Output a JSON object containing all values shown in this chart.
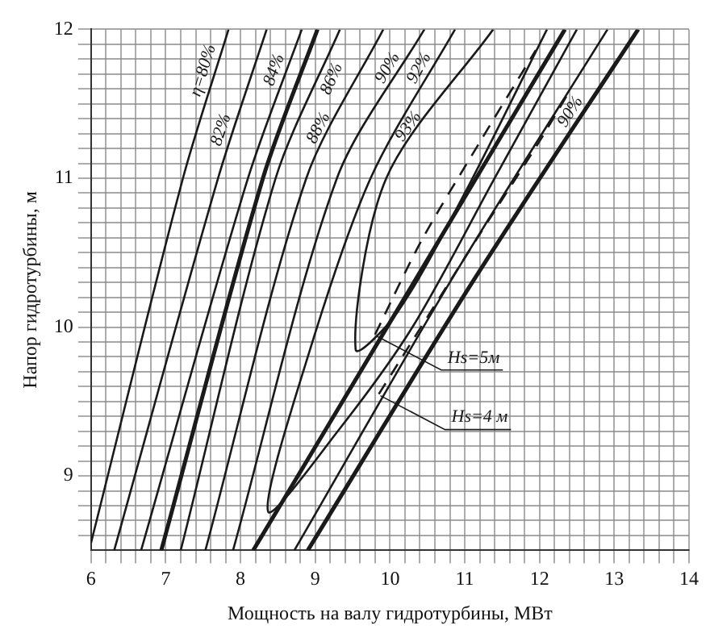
{
  "chart_data": {
    "type": "line",
    "xlabel": "Мощность на валу гидротурбины, МВт",
    "ylabel": "Напор гидротурбины, м",
    "xlim": [
      6,
      14
    ],
    "ylim": [
      8.5,
      12
    ],
    "xticks": [
      6,
      {
        "value": 6.2,
        "label": null
      },
      {
        "value": 6.4,
        "label": null
      },
      {
        "value": 6.6,
        "label": null
      },
      {
        "value": 6.8,
        "label": null
      },
      7,
      {
        "value": 7.2,
        "label": null
      },
      {
        "value": 7.4,
        "label": null
      },
      {
        "value": 7.6,
        "label": null
      },
      {
        "value": 7.8,
        "label": null
      },
      8,
      {
        "value": 8.2,
        "label": null
      },
      {
        "value": 8.4,
        "label": null
      },
      {
        "value": 8.6,
        "label": null
      },
      {
        "value": 8.8,
        "label": null
      },
      9,
      {
        "value": 9.2,
        "label": null
      },
      {
        "value": 9.4,
        "label": null
      },
      {
        "value": 9.6,
        "label": null
      },
      {
        "value": 9.8,
        "label": null
      },
      10,
      {
        "value": 10.2,
        "label": null
      },
      {
        "value": 10.4,
        "label": null
      },
      {
        "value": 10.6,
        "label": null
      },
      {
        "value": 10.8,
        "label": null
      },
      11,
      {
        "value": 11.2,
        "label": null
      },
      {
        "value": 11.4,
        "label": null
      },
      {
        "value": 11.6,
        "label": null
      },
      {
        "value": 11.8,
        "label": null
      },
      12,
      {
        "value": 12.2,
        "label": null
      },
      {
        "value": 12.4,
        "label": null
      },
      {
        "value": 12.6,
        "label": null
      },
      {
        "value": 12.8,
        "label": null
      },
      13,
      {
        "value": 13.2,
        "label": null
      },
      {
        "value": 13.4,
        "label": null
      },
      {
        "value": 13.6,
        "label": null
      },
      {
        "value": 13.8,
        "label": null
      },
      14
    ],
    "yticks": [
      {
        "value": 8.6,
        "label": null
      },
      {
        "value": 8.7,
        "label": null
      },
      {
        "value": 8.8,
        "label": null
      },
      {
        "value": 8.9,
        "label": null
      },
      9,
      {
        "value": 9.1,
        "label": null
      },
      {
        "value": 9.2,
        "label": null
      },
      {
        "value": 9.3,
        "label": null
      },
      {
        "value": 9.4,
        "label": null
      },
      {
        "value": 9.5,
        "label": null
      },
      {
        "value": 9.6,
        "label": null
      },
      {
        "value": 9.7,
        "label": null
      },
      {
        "value": 9.8,
        "label": null
      },
      {
        "value": 9.9,
        "label": null
      },
      10,
      {
        "value": 10.1,
        "label": null
      },
      {
        "value": 10.2,
        "label": null
      },
      {
        "value": 10.3,
        "label": null
      },
      {
        "value": 10.4,
        "label": null
      },
      {
        "value": 10.5,
        "label": null
      },
      {
        "value": 10.6,
        "label": null
      },
      {
        "value": 10.7,
        "label": null
      },
      {
        "value": 10.8,
        "label": null
      },
      {
        "value": 10.9,
        "label": null
      },
      11,
      {
        "value": 11.1,
        "label": null
      },
      {
        "value": 11.2,
        "label": null
      },
      {
        "value": 11.3,
        "label": null
      },
      {
        "value": 11.4,
        "label": null
      },
      {
        "value": 11.5,
        "label": null
      },
      {
        "value": 11.6,
        "label": null
      },
      {
        "value": 11.7,
        "label": null
      },
      {
        "value": 11.8,
        "label": null
      },
      {
        "value": 11.9,
        "label": null
      },
      12
    ],
    "grid": true,
    "legend": false,
    "marker": "none",
    "line_style": "solid",
    "series": [
      {
        "name": "η=80%",
        "color": "#1a1a1a",
        "x": [
          6,
          7.23,
          7.84
        ],
        "values": [
          8.55,
          11,
          12
        ]
      },
      {
        "name": "82%",
        "color": "#1a1a1a",
        "x": [
          6.31,
          7.7,
          8.35
        ],
        "values": [
          8.5,
          11,
          12
        ]
      },
      {
        "name": "84%",
        "color": "#1a1a1a",
        "x": [
          6.67,
          8.1,
          8.82
        ],
        "values": [
          8.5,
          11,
          12
        ]
      },
      {
        "color": "#1a1a1a",
        "x": [
          6.94,
          8.3,
          9.03
        ],
        "values": [
          8.5,
          11,
          12
        ]
      },
      {
        "name": "86%",
        "color": "#1a1a1a",
        "x": [
          7.2,
          8.47,
          9.33
        ],
        "values": [
          8.5,
          11,
          12
        ]
      },
      {
        "name": "88%",
        "color": "#1a1a1a",
        "x": [
          7.53,
          8.88,
          9.91
        ],
        "values": [
          8.5,
          11,
          12
        ]
      },
      {
        "name": "90%",
        "color": "#1a1a1a",
        "x": [
          7.9,
          9.29,
          10.46
        ],
        "values": [
          8.5,
          11,
          12
        ]
      },
      {
        "name": "92%",
        "color": "#1a1a1a",
        "x": [
          10.87,
          9.74,
          8.9,
          8.37,
          9.3,
          10.3,
          11.4,
          12.5
        ],
        "values": [
          12,
          11,
          9.8,
          8.76,
          9.3,
          10,
          11,
          12
        ]
      },
      {
        "name": "93%",
        "color": "#1a1a1a",
        "x": [
          11.38,
          9.95,
          9.54,
          10.1,
          11.0,
          12.1
        ],
        "values": [
          12,
          11,
          9.85,
          10.1,
          10.9,
          12
        ]
      },
      {
        "color": "#1a1a1a",
        "x": [
          8.17,
          10.2,
          12.34
        ],
        "values": [
          8.5,
          10.2,
          12
        ]
      },
      {
        "name": "90%",
        "color": "#1a1a1a",
        "x": [
          8.72,
          10.8,
          12.91
        ],
        "values": [
          8.5,
          10.3,
          12
        ]
      },
      {
        "color": "#1a1a1a",
        "x": [
          8.9,
          11.1,
          13.32
        ],
        "values": [
          8.5,
          10.3,
          12
        ]
      },
      {
        "name": "Hs=5м",
        "color": "#1a1a1a",
        "line_style": "dashed",
        "x": [
          9.8,
          10.42,
          11.21,
          11.95
        ],
        "values": [
          9.95,
          10.58,
          11.25,
          11.86
        ]
      },
      {
        "name": "Hs=4 м",
        "color": "#1a1a1a",
        "line_style": "dashed",
        "x": [
          9.85,
          11.17,
          11.99,
          12.36
        ],
        "values": [
          9.55,
          10.6,
          11.24,
          11.55
        ]
      }
    ]
  }
}
